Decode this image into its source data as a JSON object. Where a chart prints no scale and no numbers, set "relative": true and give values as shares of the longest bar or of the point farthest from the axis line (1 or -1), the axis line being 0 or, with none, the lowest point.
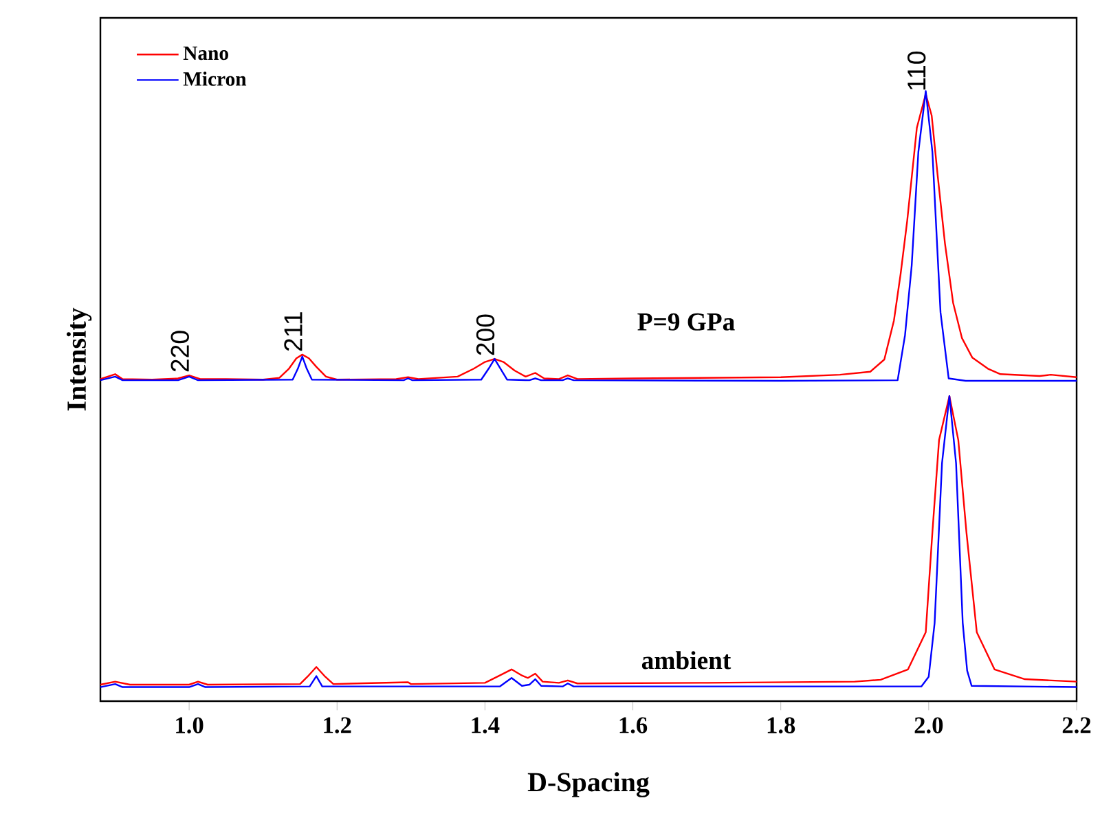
{
  "chart_data": {
    "type": "line",
    "xlabel": "D-Spacing",
    "ylabel": "Intensity",
    "relative": true,
    "tick_labels": "x",
    "legend": "top left",
    "xlim": [
      0.88,
      2.2
    ],
    "xticks": [
      {
        "value": 1.0,
        "label": "1.0"
      },
      {
        "value": 1.2,
        "label": "1.2"
      },
      {
        "value": 1.4,
        "label": "1.4"
      },
      {
        "value": 1.6,
        "label": "1.6"
      },
      {
        "value": 1.8,
        "label": "1.8"
      },
      {
        "value": 2.0,
        "label": "2.0"
      },
      {
        "value": 2.2,
        "label": "2.2"
      }
    ],
    "series": [
      {
        "name": "Nano",
        "color": "#ff0000",
        "x": [
          0.88,
          0.89,
          0.9,
          0.91,
          0.95,
          0.985,
          1.0,
          1.015,
          1.05,
          1.1,
          1.122,
          1.135,
          1.145,
          1.153,
          1.162,
          1.172,
          1.185,
          1.2,
          1.28,
          1.296,
          1.31,
          1.363,
          1.385,
          1.4,
          1.413,
          1.425,
          1.44,
          1.455,
          1.468,
          1.48,
          1.5,
          1.512,
          1.525,
          1.6,
          1.7,
          1.8,
          1.88,
          1.921,
          1.94,
          1.953,
          1.962,
          1.971,
          1.984,
          1.996,
          2.004,
          2.012,
          2.022,
          2.033,
          2.045,
          2.059,
          2.08,
          2.097,
          2.15,
          2.165,
          2.2
        ],
        "values": [
          0.528,
          0.532,
          0.536,
          0.528,
          0.527,
          0.529,
          0.534,
          0.528,
          0.528,
          0.527,
          0.53,
          0.545,
          0.562,
          0.568,
          0.562,
          0.548,
          0.532,
          0.527,
          0.528,
          0.531,
          0.528,
          0.532,
          0.545,
          0.556,
          0.561,
          0.556,
          0.542,
          0.532,
          0.538,
          0.529,
          0.528,
          0.534,
          0.528,
          0.529,
          0.53,
          0.531,
          0.535,
          0.54,
          0.56,
          0.624,
          0.7,
          0.788,
          0.94,
          0.995,
          0.96,
          0.863,
          0.75,
          0.653,
          0.595,
          0.563,
          0.545,
          0.536,
          0.533,
          0.535,
          0.531
        ]
      },
      {
        "name": "Micron",
        "color": "#0000ff",
        "x": [
          0.88,
          0.9,
          0.91,
          0.985,
          1.0,
          1.012,
          1.14,
          1.147,
          1.153,
          1.159,
          1.166,
          1.29,
          1.296,
          1.302,
          1.395,
          1.405,
          1.413,
          1.421,
          1.43,
          1.46,
          1.468,
          1.476,
          1.505,
          1.512,
          1.52,
          1.8,
          1.958,
          1.968,
          1.977,
          1.986,
          1.996,
          2.005,
          2.016,
          2.027,
          2.05,
          2.2
        ],
        "values": [
          0.526,
          0.532,
          0.526,
          0.526,
          0.532,
          0.526,
          0.527,
          0.545,
          0.565,
          0.545,
          0.527,
          0.526,
          0.529,
          0.526,
          0.527,
          0.545,
          0.561,
          0.545,
          0.527,
          0.526,
          0.529,
          0.526,
          0.526,
          0.529,
          0.526,
          0.525,
          0.526,
          0.6,
          0.714,
          0.9,
          1.0,
          0.9,
          0.637,
          0.529,
          0.525,
          0.525
        ]
      },
      {
        "color": "#ff0000",
        "x": [
          0.88,
          0.9,
          0.92,
          1.0,
          1.012,
          1.025,
          1.15,
          1.16,
          1.172,
          1.184,
          1.195,
          1.296,
          1.3,
          1.4,
          1.42,
          1.436,
          1.45,
          1.458,
          1.468,
          1.478,
          1.5,
          1.512,
          1.525,
          1.7,
          1.9,
          1.935,
          1.972,
          1.996,
          2.005,
          2.014,
          2.028,
          2.04,
          2.051,
          2.065,
          2.089,
          2.13,
          2.2
        ],
        "values": [
          0.027,
          0.032,
          0.027,
          0.027,
          0.032,
          0.027,
          0.028,
          0.04,
          0.056,
          0.04,
          0.028,
          0.031,
          0.028,
          0.03,
          0.042,
          0.052,
          0.042,
          0.038,
          0.045,
          0.032,
          0.03,
          0.034,
          0.029,
          0.03,
          0.032,
          0.035,
          0.052,
          0.113,
          0.277,
          0.428,
          0.5,
          0.428,
          0.277,
          0.113,
          0.052,
          0.036,
          0.032
        ]
      },
      {
        "color": "#0000ff",
        "x": [
          0.88,
          0.9,
          0.91,
          1.0,
          1.012,
          1.022,
          1.163,
          1.172,
          1.18,
          1.42,
          1.436,
          1.45,
          1.46,
          1.468,
          1.476,
          1.505,
          1.512,
          1.52,
          1.99,
          2.0,
          2.008,
          2.018,
          2.028,
          2.037,
          2.046,
          2.052,
          2.058,
          2.2
        ],
        "values": [
          0.023,
          0.028,
          0.023,
          0.023,
          0.028,
          0.023,
          0.024,
          0.041,
          0.024,
          0.024,
          0.038,
          0.025,
          0.027,
          0.036,
          0.025,
          0.024,
          0.029,
          0.024,
          0.024,
          0.04,
          0.128,
          0.39,
          0.5,
          0.39,
          0.128,
          0.05,
          0.025,
          0.023
        ]
      }
    ],
    "annotations": [
      {
        "text": "220",
        "x": 1.0,
        "y": 0.534
      },
      {
        "text": "211",
        "x": 1.153,
        "y": 0.568
      },
      {
        "text": "200",
        "x": 1.413,
        "y": 0.561
      },
      {
        "text": "110",
        "x": 1.996,
        "y": 0.995
      },
      "P=9 GPa",
      "ambient"
    ]
  }
}
